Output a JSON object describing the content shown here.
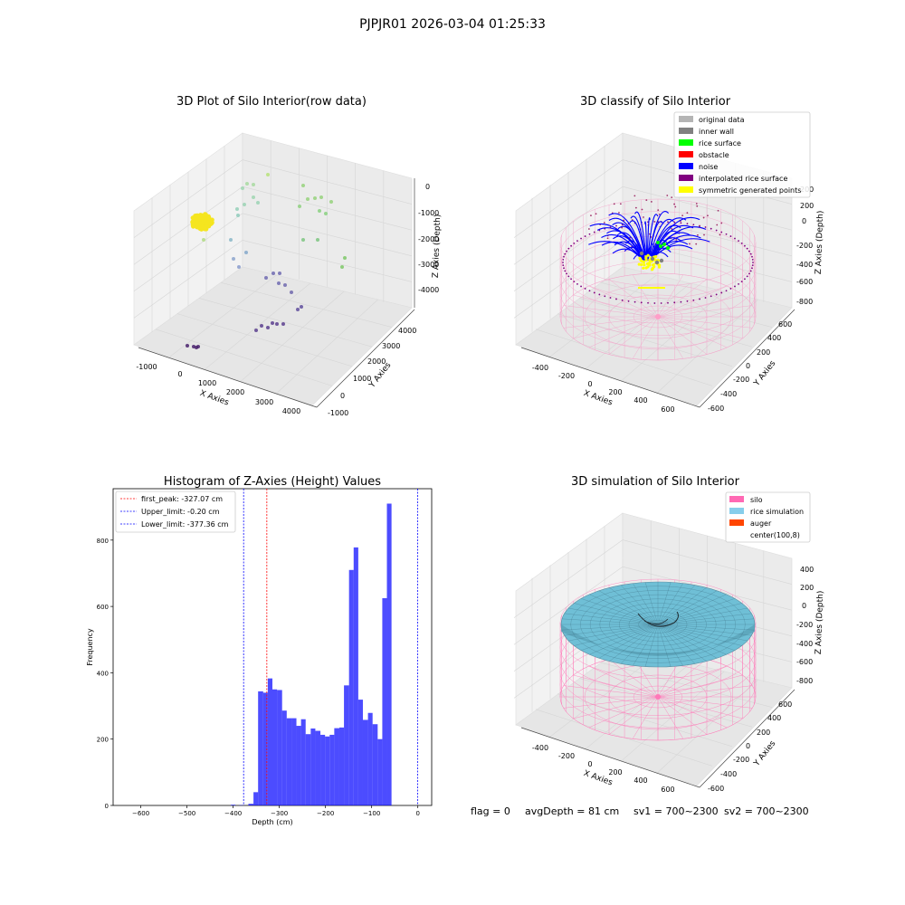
{
  "figure": {
    "suptitle": "PJPJR01 2026-03-04 01:25:33"
  },
  "status": {
    "flag": "flag = 0",
    "avg_depth": "avgDepth = 81 cm",
    "sv1": "sv1 = 700~2300",
    "sv2": "sv2 = 700~2300"
  },
  "panels": {
    "raw": {
      "title": "3D Plot of Silo Interior(row data)",
      "xlabel": "X Axies",
      "ylabel": "Y Axies",
      "zlabel": "Z Axies (Depth)",
      "xticks": [
        "-1000",
        "0",
        "1000",
        "2000",
        "3000",
        "4000"
      ],
      "yticks": [
        "-1000",
        "0",
        "1000",
        "2000",
        "3000",
        "4000"
      ],
      "zticks": [
        "0",
        "-1000",
        "-2000",
        "-3000",
        "-4000"
      ]
    },
    "classify": {
      "title": "3D classify of Silo Interior",
      "xlabel": "X Axies",
      "ylabel": "Y Axies",
      "zlabel": "Z Axies (Depth)",
      "xticks": [
        "-400",
        "-200",
        "0",
        "200",
        "400",
        "600"
      ],
      "yticks": [
        "-600",
        "-400",
        "-200",
        "0",
        "200",
        "400",
        "600"
      ],
      "zticks": [
        "200",
        "0",
        "-200",
        "-400",
        "-600",
        "-800"
      ],
      "legend": [
        {
          "label": "original data",
          "color": "#b4b4b4"
        },
        {
          "label": "inner wall",
          "color": "#808080"
        },
        {
          "label": "rice surface",
          "color": "#00ff00"
        },
        {
          "label": "obstacle",
          "color": "#ff0000"
        },
        {
          "label": "noise",
          "color": "#0000ff"
        },
        {
          "label": "interpolated rice surface",
          "color": "#800080"
        },
        {
          "label": "symmetric generated points",
          "color": "#ffff00"
        }
      ]
    },
    "simulation": {
      "title": "3D simulation of Silo Interior",
      "xlabel": "X Axies",
      "ylabel": "Y Axies",
      "zlabel": "Z Axies (Depth)",
      "xticks": [
        "-400",
        "-200",
        "0",
        "200",
        "400",
        "600"
      ],
      "yticks": [
        "-600",
        "-400",
        "-200",
        "0",
        "200",
        "400",
        "600"
      ],
      "zticks": [
        "400",
        "200",
        "0",
        "-200",
        "-400",
        "-600",
        "-800"
      ],
      "legend": [
        {
          "label": "silo",
          "color": "#ff69b4"
        },
        {
          "label": "rice simulation",
          "color": "#87ceeb"
        },
        {
          "label": "auger",
          "color": "#ff4500"
        },
        {
          "label": "center(100,8)",
          "color": ""
        }
      ]
    }
  },
  "chart_data": {
    "type": "bar",
    "title": "Histogram of Z-Axies (Height) Values",
    "xlabel": "Depth (cm)",
    "ylabel": "Frequency",
    "xlim": [
      -660,
      30
    ],
    "ylim": [
      0,
      955
    ],
    "xticks": [
      -600,
      -500,
      -400,
      -300,
      -200,
      -100,
      0
    ],
    "yticks": [
      0,
      200,
      400,
      600,
      800
    ],
    "bar_color": "#0000ff",
    "bins": [
      {
        "x0": -405,
        "x1": -395,
        "count": 2
      },
      {
        "x0": -387,
        "x1": -377,
        "count": 1
      },
      {
        "x0": -377,
        "x1": -367,
        "count": 0
      },
      {
        "x0": -367,
        "x1": -356,
        "count": 5
      },
      {
        "x0": -356,
        "x1": -346,
        "count": 40
      },
      {
        "x0": -346,
        "x1": -335,
        "count": 344
      },
      {
        "x0": -335,
        "x1": -325,
        "count": 340
      },
      {
        "x0": -325,
        "x1": -315,
        "count": 383
      },
      {
        "x0": -315,
        "x1": -305,
        "count": 350
      },
      {
        "x0": -305,
        "x1": -294,
        "count": 348
      },
      {
        "x0": -294,
        "x1": -284,
        "count": 286
      },
      {
        "x0": -284,
        "x1": -273,
        "count": 263
      },
      {
        "x0": -273,
        "x1": -263,
        "count": 263
      },
      {
        "x0": -263,
        "x1": -253,
        "count": 240
      },
      {
        "x0": -253,
        "x1": -243,
        "count": 260
      },
      {
        "x0": -243,
        "x1": -232,
        "count": 215
      },
      {
        "x0": -232,
        "x1": -222,
        "count": 232
      },
      {
        "x0": -222,
        "x1": -211,
        "count": 225
      },
      {
        "x0": -211,
        "x1": -201,
        "count": 213
      },
      {
        "x0": -201,
        "x1": -191,
        "count": 208
      },
      {
        "x0": -191,
        "x1": -181,
        "count": 213
      },
      {
        "x0": -181,
        "x1": -170,
        "count": 233
      },
      {
        "x0": -170,
        "x1": -160,
        "count": 235
      },
      {
        "x0": -160,
        "x1": -149,
        "count": 362
      },
      {
        "x0": -149,
        "x1": -139,
        "count": 710
      },
      {
        "x0": -139,
        "x1": -129,
        "count": 778
      },
      {
        "x0": -129,
        "x1": -119,
        "count": 319
      },
      {
        "x0": -119,
        "x1": -108,
        "count": 258
      },
      {
        "x0": -108,
        "x1": -98,
        "count": 279
      },
      {
        "x0": -98,
        "x1": -87,
        "count": 245
      },
      {
        "x0": -87,
        "x1": -77,
        "count": 200
      },
      {
        "x0": -77,
        "x1": -67,
        "count": 625
      },
      {
        "x0": -67,
        "x1": -57,
        "count": 910
      },
      {
        "x0": -57,
        "x1": 0,
        "count": 0
      }
    ],
    "lines": [
      {
        "label": "first_peak: -327.07 cm",
        "x": -327.07,
        "color": "#ff0000"
      },
      {
        "label": "Upper_limit: -0.20 cm",
        "x": -0.2,
        "color": "#0000ff"
      },
      {
        "label": "Lower_limit: -377.36 cm",
        "x": -377.36,
        "color": "#0000ff"
      }
    ]
  }
}
